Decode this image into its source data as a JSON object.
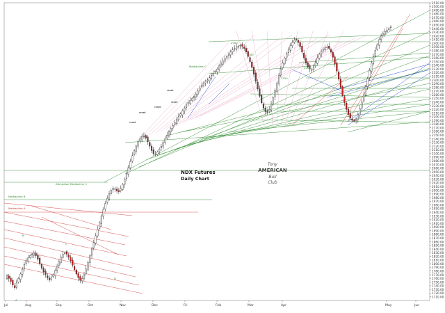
{
  "chart_data": {
    "type": "candlestick",
    "title": "NDX Futures",
    "subtitle": "Daily Chart",
    "watermark_text": [
      "Tony",
      "AMERICAN",
      "Bull",
      "Club"
    ],
    "x_tick_labels": [
      "Jul",
      "Aug",
      "Sep",
      "Oct",
      "Nov",
      "Dec",
      "Fri",
      "Feb",
      "Mar",
      "Apr",
      "May",
      "Jun"
    ],
    "y_axis": {
      "range": [
        1700,
        2510
      ],
      "labelled_values": [
        2510,
        2500,
        2490,
        2480,
        2470,
        2460,
        2450,
        2440,
        2430,
        2420,
        2410,
        2400,
        2390,
        2380,
        2370,
        2360,
        2350,
        2340,
        2330,
        2320,
        2310,
        2300,
        2290,
        2280,
        2270,
        2260,
        2250,
        2240,
        2230,
        2220,
        2210,
        2200,
        2190,
        2180,
        2170,
        2160,
        2150,
        2140,
        2130,
        2120,
        2110,
        2100,
        2090,
        2080,
        2070,
        2060,
        2050,
        2040,
        2030,
        2020,
        2010,
        2000,
        1990,
        1980,
        1970,
        1960,
        1950,
        1940,
        1930,
        1920,
        1910,
        1900,
        1890,
        1880,
        1870,
        1860,
        1850,
        1840,
        1830,
        1820,
        1810,
        1800,
        1790,
        1780,
        1770,
        1760,
        1750,
        1740,
        1730,
        1720,
        1710
      ]
    },
    "annotations": [
      {
        "text": "Medianline C",
        "color": "#2e8b2e"
      },
      {
        "text": "Altmedian Medianline C",
        "color": "#2e8b2e"
      },
      {
        "text": "Medianline B",
        "color": "#2e8b2e"
      },
      {
        "text": "Medianline A",
        "color": "#c0392b"
      },
      {
        "text": "reset",
        "color": "#000000"
      },
      {
        "text": "reset",
        "color": "#000000"
      },
      {
        "text": "reset",
        "color": "#000000"
      },
      {
        "text": "reset",
        "color": "#000000"
      },
      {
        "text": "reset",
        "color": "#000000"
      },
      {
        "text": "2500",
        "color": "#2e8b2e"
      },
      {
        "text": "2300",
        "color": "#2e8b2e"
      },
      {
        "text": "2200",
        "color": "#2e8b2e"
      },
      {
        "text": "2350",
        "color": "#2e8b2e"
      },
      {
        "text": "A",
        "color": "#2e8b2e"
      },
      {
        "text": "B",
        "color": "#2e8b2e"
      },
      {
        "text": "C",
        "color": "#2e8b2e"
      },
      {
        "text": "D",
        "color": "#2e8b2e"
      }
    ],
    "series_close": [
      1768,
      1760,
      1752,
      1742,
      1735,
      1748,
      1760,
      1772,
      1785,
      1798,
      1808,
      1816,
      1822,
      1826,
      1830,
      1822,
      1812,
      1800,
      1788,
      1778,
      1770,
      1762,
      1756,
      1762,
      1770,
      1782,
      1794,
      1806,
      1818,
      1826,
      1830,
      1826,
      1818,
      1808,
      1796,
      1784,
      1772,
      1762,
      1755,
      1760,
      1770,
      1786,
      1804,
      1822,
      1840,
      1858,
      1876,
      1894,
      1912,
      1930,
      1948,
      1964,
      1978,
      1990,
      2000,
      2006,
      2004,
      1998,
      1996,
      2004,
      2016,
      2030,
      2046,
      2062,
      2078,
      2094,
      2108,
      2120,
      2132,
      2140,
      2146,
      2148,
      2142,
      2132,
      2120,
      2108,
      2100,
      2098,
      2104,
      2112,
      2120,
      2130,
      2140,
      2150,
      2160,
      2168,
      2176,
      2184,
      2192,
      2200,
      2208,
      2216,
      2224,
      2232,
      2238,
      2244,
      2250,
      2256,
      2262,
      2270,
      2278,
      2286,
      2292,
      2296,
      2300,
      2306,
      2312,
      2318,
      2324,
      2330,
      2338,
      2346,
      2352,
      2358,
      2364,
      2370,
      2376,
      2382,
      2386,
      2390,
      2392,
      2394,
      2392,
      2386,
      2376,
      2364,
      2350,
      2334,
      2316,
      2296,
      2276,
      2256,
      2238,
      2224,
      2214,
      2212,
      2220,
      2234,
      2252,
      2272,
      2292,
      2312,
      2330,
      2346,
      2360,
      2372,
      2384,
      2394,
      2402,
      2408,
      2410,
      2402,
      2390,
      2376,
      2360,
      2346,
      2336,
      2330,
      2328,
      2336,
      2348,
      2360,
      2370,
      2378,
      2384,
      2388,
      2390,
      2386,
      2376,
      2362,
      2344,
      2324,
      2302,
      2280,
      2258,
      2238,
      2220,
      2206,
      2196,
      2190,
      2188,
      2194,
      2206,
      2222,
      2240,
      2260,
      2282,
      2304,
      2326,
      2346,
      2364,
      2380,
      2396,
      2410,
      2420,
      2426,
      2432,
      2436,
      2440,
      2444
    ]
  },
  "colors": {
    "up_candle": "#ffffff",
    "down_candle": "#d02020",
    "wick": "#222222",
    "green_lines": "#2e8b2e",
    "red_lines": "#d43c3c",
    "blue_lines": "#3050d0",
    "pink_lines": "#e08ab0",
    "annotation_text": "#1a1a1a"
  }
}
